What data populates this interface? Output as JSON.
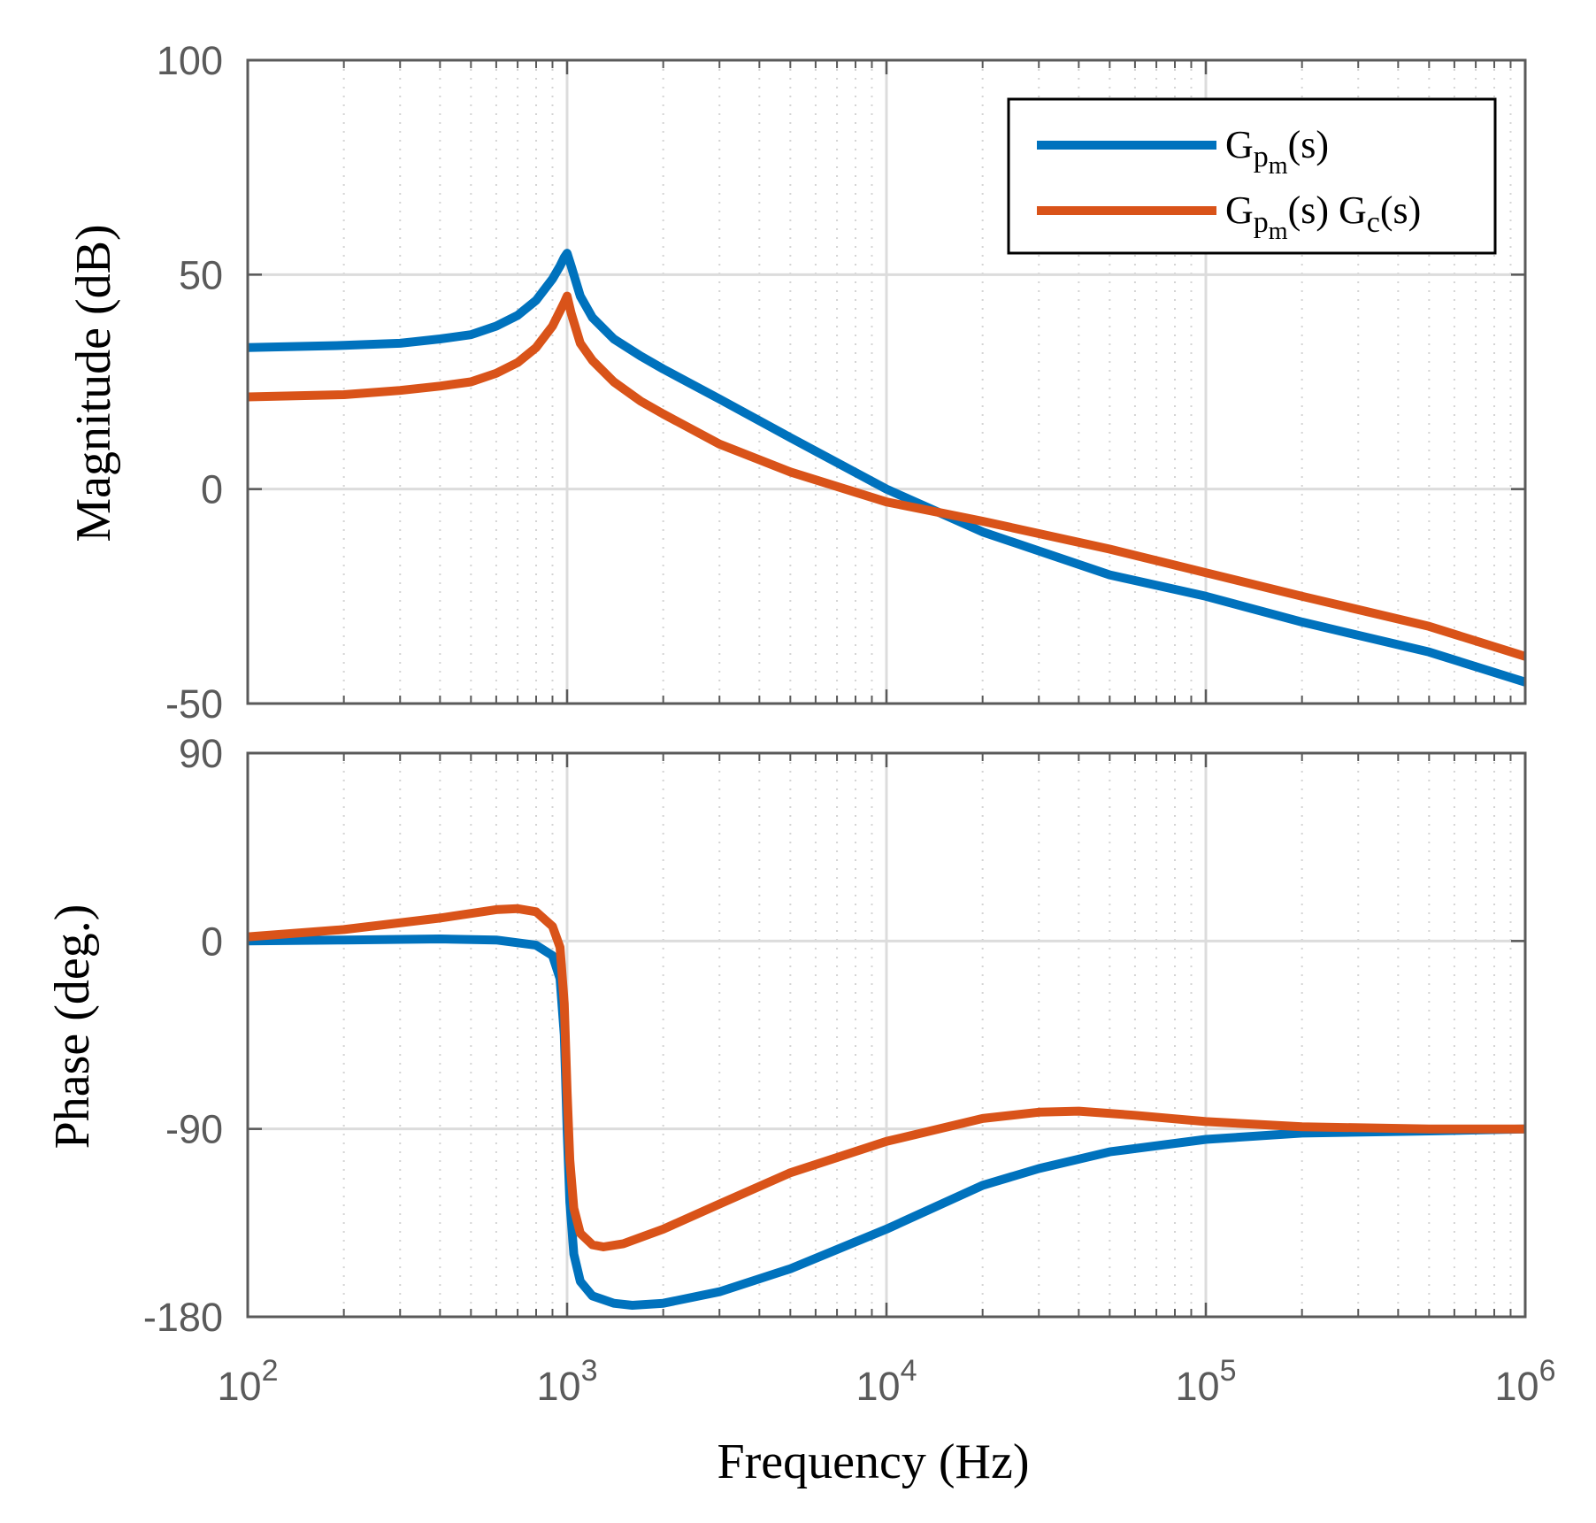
{
  "chart_data": [
    {
      "type": "line",
      "panel": "magnitude",
      "title": "",
      "xlabel": "",
      "ylabel": "Magnitude (dB)",
      "xscale": "log",
      "xlim": [
        100,
        1000000
      ],
      "ylim": [
        -50,
        100
      ],
      "yticks": [
        -50,
        0,
        50,
        100
      ],
      "ytick_labels": [
        "-50",
        "0",
        "50",
        "100"
      ],
      "grid": true,
      "legend": {
        "placement": "top-right",
        "entries": [
          {
            "text": "G",
            "sub": "p",
            "subsub": "m",
            "tail": "(s)",
            "extra": "",
            "extra_sub": "",
            "extra_tail": ""
          },
          {
            "text": "G",
            "sub": "p",
            "subsub": "m",
            "tail": "(s) ",
            "extra": "G",
            "extra_sub": "c",
            "extra_tail": "(s)"
          }
        ]
      },
      "series": [
        {
          "color": "#0072BD",
          "x": [
            100,
            200,
            300,
            400,
            500,
            600,
            700,
            800,
            900,
            950,
            980,
            1000,
            1030,
            1100,
            1200,
            1400,
            1700,
            2000,
            3000,
            5000,
            10000,
            20000,
            50000,
            100000,
            200000,
            500000,
            1000000
          ],
          "y": [
            33,
            33.5,
            34,
            35,
            36,
            38,
            40.5,
            44,
            49,
            52,
            54,
            55,
            52,
            45,
            40,
            35,
            31,
            28,
            21,
            12,
            0,
            -10,
            -20,
            -25,
            -31,
            -38,
            -45
          ]
        },
        {
          "color": "#D95319",
          "x": [
            100,
            200,
            300,
            400,
            500,
            600,
            700,
            800,
            900,
            950,
            980,
            1000,
            1030,
            1100,
            1200,
            1400,
            1700,
            2000,
            3000,
            5000,
            10000,
            20000,
            50000,
            100000,
            200000,
            500000,
            1000000
          ],
          "y": [
            21.5,
            22,
            23,
            24,
            25,
            27,
            29.5,
            33,
            38,
            41.5,
            43.5,
            45,
            41,
            34,
            30,
            25,
            20.5,
            17.5,
            10.5,
            4,
            -3,
            -7.5,
            -14,
            -19.5,
            -25,
            -32,
            -39
          ]
        }
      ]
    },
    {
      "type": "line",
      "panel": "phase",
      "title": "",
      "xlabel": "Frequency (Hz)",
      "ylabel": "Phase (deg.)",
      "xscale": "log",
      "xlim": [
        100,
        1000000
      ],
      "ylim": [
        -180,
        90
      ],
      "yticks": [
        -180,
        -90,
        0,
        90
      ],
      "ytick_labels": [
        "-180",
        "-90",
        "0",
        "90"
      ],
      "xticks": [
        {
          "base": "10",
          "exp": "2"
        },
        {
          "base": "10",
          "exp": "3"
        },
        {
          "base": "10",
          "exp": "4"
        },
        {
          "base": "10",
          "exp": "5"
        },
        {
          "base": "10",
          "exp": "6"
        }
      ],
      "grid": true,
      "series": [
        {
          "color": "#0072BD",
          "x": [
            100,
            200,
            400,
            600,
            800,
            900,
            950,
            980,
            1000,
            1020,
            1050,
            1100,
            1200,
            1400,
            1600,
            2000,
            3000,
            5000,
            10000,
            20000,
            30000,
            50000,
            100000,
            200000,
            500000,
            1000000
          ],
          "y": [
            0,
            0.5,
            1,
            0.5,
            -2,
            -7,
            -18,
            -45,
            -90,
            -125,
            -150,
            -163,
            -170,
            -173.5,
            -174.5,
            -173.5,
            -168,
            -157,
            -138,
            -117,
            -109,
            -101,
            -95,
            -92,
            -91,
            -90
          ]
        },
        {
          "color": "#D95319",
          "x": [
            100,
            200,
            400,
            600,
            700,
            800,
            900,
            950,
            980,
            1000,
            1020,
            1050,
            1100,
            1200,
            1300,
            1500,
            2000,
            3000,
            5000,
            10000,
            20000,
            30000,
            40000,
            60000,
            100000,
            200000,
            500000,
            1000000
          ],
          "y": [
            2,
            5.5,
            11,
            15,
            15.5,
            14,
            7,
            -3,
            -30,
            -72,
            -105,
            -128,
            -140,
            -145.5,
            -146.5,
            -145,
            -138,
            -126,
            -111,
            -96,
            -85,
            -82,
            -81.5,
            -83.5,
            -86.5,
            -89,
            -90,
            -90
          ]
        }
      ]
    }
  ]
}
